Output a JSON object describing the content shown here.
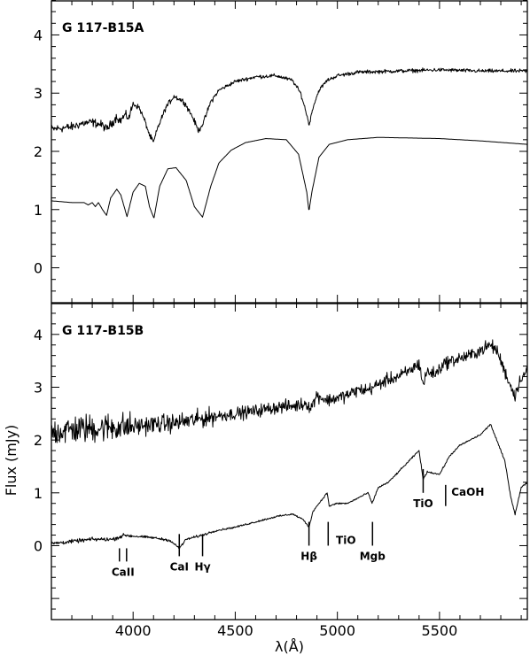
{
  "chart_data": [
    {
      "type": "line",
      "panel": "top",
      "title": "G 117-B15A",
      "xlabel": "",
      "ylabel": "",
      "xlim": [
        3600,
        5930
      ],
      "ylim": [
        -0.6,
        4.6
      ],
      "x_ticks": [
        4000,
        4500,
        5000,
        5500
      ],
      "y_ticks": [
        0,
        1,
        2,
        3,
        4
      ],
      "series": [
        {
          "noise": 0.04,
          "points": [
            [
              3600,
              2.38
            ],
            [
              3700,
              2.42
            ],
            [
              3750,
              2.48
            ],
            [
              3800,
              2.5
            ],
            [
              3850,
              2.45
            ],
            [
              3870,
              2.38
            ],
            [
              3900,
              2.5
            ],
            [
              3920,
              2.6
            ],
            [
              3935,
              2.52
            ],
            [
              3960,
              2.62
            ],
            [
              3980,
              2.58
            ],
            [
              4000,
              2.82
            ],
            [
              4030,
              2.75
            ],
            [
              4060,
              2.5
            ],
            [
              4080,
              2.28
            ],
            [
              4100,
              2.15
            ],
            [
              4120,
              2.4
            ],
            [
              4160,
              2.75
            ],
            [
              4200,
              2.95
            ],
            [
              4250,
              2.85
            ],
            [
              4290,
              2.6
            ],
            [
              4320,
              2.35
            ],
            [
              4345,
              2.5
            ],
            [
              4380,
              2.85
            ],
            [
              4420,
              3.05
            ],
            [
              4500,
              3.2
            ],
            [
              4600,
              3.28
            ],
            [
              4700,
              3.3
            ],
            [
              4780,
              3.22
            ],
            [
              4820,
              3.0
            ],
            [
              4845,
              2.7
            ],
            [
              4862,
              2.45
            ],
            [
              4880,
              2.75
            ],
            [
              4910,
              3.05
            ],
            [
              4950,
              3.22
            ],
            [
              5000,
              3.3
            ],
            [
              5100,
              3.36
            ],
            [
              5300,
              3.38
            ],
            [
              5500,
              3.4
            ],
            [
              5700,
              3.38
            ],
            [
              5930,
              3.38
            ]
          ]
        },
        {
          "noise": 0,
          "points": [
            [
              3600,
              1.15
            ],
            [
              3700,
              1.12
            ],
            [
              3760,
              1.12
            ],
            [
              3780,
              1.08
            ],
            [
              3800,
              1.12
            ],
            [
              3815,
              1.05
            ],
            [
              3830,
              1.12
            ],
            [
              3850,
              1.0
            ],
            [
              3870,
              0.9
            ],
            [
              3890,
              1.2
            ],
            [
              3920,
              1.35
            ],
            [
              3940,
              1.25
            ],
            [
              3970,
              0.88
            ],
            [
              4000,
              1.3
            ],
            [
              4030,
              1.45
            ],
            [
              4060,
              1.4
            ],
            [
              4080,
              1.05
            ],
            [
              4102,
              0.85
            ],
            [
              4130,
              1.4
            ],
            [
              4170,
              1.7
            ],
            [
              4210,
              1.72
            ],
            [
              4260,
              1.5
            ],
            [
              4300,
              1.05
            ],
            [
              4340,
              0.87
            ],
            [
              4380,
              1.4
            ],
            [
              4420,
              1.8
            ],
            [
              4480,
              2.02
            ],
            [
              4550,
              2.15
            ],
            [
              4650,
              2.22
            ],
            [
              4750,
              2.2
            ],
            [
              4810,
              1.95
            ],
            [
              4850,
              1.3
            ],
            [
              4861,
              0.97
            ],
            [
              4875,
              1.3
            ],
            [
              4910,
              1.9
            ],
            [
              4960,
              2.12
            ],
            [
              5050,
              2.2
            ],
            [
              5200,
              2.24
            ],
            [
              5500,
              2.22
            ],
            [
              5700,
              2.18
            ],
            [
              5930,
              2.12
            ]
          ]
        }
      ]
    },
    {
      "type": "line",
      "panel": "bottom",
      "title": "G 117-B15B",
      "xlabel": "λ(Å)",
      "ylabel": "Flux  (mJy)",
      "xlim": [
        3600,
        5930
      ],
      "ylim": [
        -1.4,
        4.6
      ],
      "x_ticks": [
        4000,
        4500,
        5000,
        5500
      ],
      "y_ticks": [
        0,
        1,
        2,
        3,
        4
      ],
      "series": [
        {
          "noise": 0.15,
          "points": [
            [
              3600,
              2.15
            ],
            [
              3700,
              2.2
            ],
            [
              3800,
              2.22
            ],
            [
              3900,
              2.25
            ],
            [
              4000,
              2.25
            ],
            [
              4100,
              2.3
            ],
            [
              4200,
              2.32
            ],
            [
              4300,
              2.38
            ],
            [
              4400,
              2.45
            ],
            [
              4500,
              2.5
            ],
            [
              4600,
              2.55
            ],
            [
              4700,
              2.62
            ],
            [
              4800,
              2.65
            ],
            [
              4850,
              2.7
            ],
            [
              4870,
              2.6
            ],
            [
              4900,
              2.85
            ],
            [
              4950,
              2.75
            ],
            [
              5000,
              2.8
            ],
            [
              5050,
              2.85
            ],
            [
              5100,
              2.95
            ],
            [
              5150,
              2.95
            ],
            [
              5200,
              3.05
            ],
            [
              5250,
              3.15
            ],
            [
              5300,
              3.2
            ],
            [
              5350,
              3.3
            ],
            [
              5400,
              3.45
            ],
            [
              5420,
              3.05
            ],
            [
              5440,
              3.3
            ],
            [
              5480,
              3.25
            ],
            [
              5520,
              3.45
            ],
            [
              5600,
              3.55
            ],
            [
              5650,
              3.6
            ],
            [
              5700,
              3.7
            ],
            [
              5750,
              3.8
            ],
            [
              5780,
              3.7
            ],
            [
              5820,
              3.3
            ],
            [
              5850,
              3.0
            ],
            [
              5870,
              2.85
            ],
            [
              5900,
              3.2
            ],
            [
              5930,
              3.3
            ]
          ]
        },
        {
          "noise": 0.02,
          "points": [
            [
              3600,
              0.04
            ],
            [
              3700,
              0.08
            ],
            [
              3800,
              0.12
            ],
            [
              3900,
              0.12
            ],
            [
              3960,
              0.2
            ],
            [
              4000,
              0.18
            ],
            [
              4100,
              0.15
            ],
            [
              4180,
              0.1
            ],
            [
              4226,
              -0.05
            ],
            [
              4260,
              0.12
            ],
            [
              4340,
              0.2
            ],
            [
              4400,
              0.28
            ],
            [
              4500,
              0.35
            ],
            [
              4600,
              0.45
            ],
            [
              4700,
              0.55
            ],
            [
              4780,
              0.6
            ],
            [
              4830,
              0.5
            ],
            [
              4862,
              0.35
            ],
            [
              4880,
              0.65
            ],
            [
              4920,
              0.85
            ],
            [
              4950,
              1.0
            ],
            [
              4960,
              0.75
            ],
            [
              5000,
              0.8
            ],
            [
              5050,
              0.8
            ],
            [
              5100,
              0.9
            ],
            [
              5150,
              1.0
            ],
            [
              5170,
              0.8
            ],
            [
              5200,
              1.1
            ],
            [
              5250,
              1.2
            ],
            [
              5300,
              1.4
            ],
            [
              5350,
              1.6
            ],
            [
              5400,
              1.8
            ],
            [
              5420,
              1.25
            ],
            [
              5440,
              1.4
            ],
            [
              5500,
              1.35
            ],
            [
              5550,
              1.7
            ],
            [
              5600,
              1.9
            ],
            [
              5700,
              2.1
            ],
            [
              5750,
              2.3
            ],
            [
              5780,
              2.0
            ],
            [
              5820,
              1.6
            ],
            [
              5850,
              0.9
            ],
            [
              5870,
              0.6
            ],
            [
              5900,
              1.1
            ],
            [
              5930,
              1.2
            ]
          ]
        }
      ],
      "annotations": [
        {
          "label": "CaII",
          "x": [
            3933,
            3968
          ],
          "y0": -0.3,
          "y1": -0.05
        },
        {
          "label": "CaI",
          "x": [
            4226
          ],
          "y0": -0.2,
          "y1": 0.22
        },
        {
          "label": "Hγ",
          "x": [
            4340
          ],
          "y0": -0.2,
          "y1": 0.22
        },
        {
          "label": "Hβ",
          "x": [
            4861
          ],
          "y0": 0.0,
          "y1": 0.45
        },
        {
          "label": "TiO",
          "x": [
            4955
          ],
          "y0": 0.0,
          "y1": 0.45
        },
        {
          "label": "Mgb",
          "x": [
            5172
          ],
          "y0": 0.0,
          "y1": 0.45
        },
        {
          "label": "TiO",
          "x": [
            5420
          ],
          "y0": 1.0,
          "y1": 1.45
        },
        {
          "label": "CaOH",
          "x": [
            5530
          ],
          "y0": 0.75,
          "y1": 1.15
        }
      ]
    }
  ]
}
